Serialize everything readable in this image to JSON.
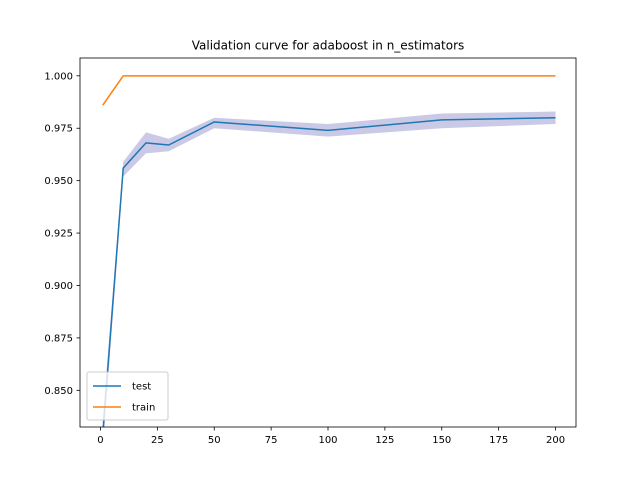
{
  "chart_data": {
    "type": "line",
    "title": "Validation curve for adaboost in n_estimators",
    "xlabel": "",
    "ylabel": "",
    "xlim": [
      -9,
      209
    ],
    "ylim": [
      0.8325,
      1.0085
    ],
    "xticks": [
      0,
      25,
      50,
      75,
      100,
      125,
      150,
      175,
      200
    ],
    "yticks": [
      0.85,
      0.875,
      0.9,
      0.925,
      0.95,
      0.975,
      1.0
    ],
    "ytick_labels": [
      "0.850",
      "0.875",
      "0.900",
      "0.925",
      "0.950",
      "0.975",
      "1.000"
    ],
    "grid": false,
    "legend": {
      "position": "lower-left"
    },
    "series": [
      {
        "name": "test",
        "color": "#1f77b4",
        "x": [
          1,
          10,
          20,
          30,
          50,
          100,
          150,
          200
        ],
        "y": [
          0.829,
          0.956,
          0.968,
          0.967,
          0.978,
          0.974,
          0.979,
          0.98
        ],
        "band_lower": [
          0.821,
          0.952,
          0.963,
          0.964,
          0.975,
          0.971,
          0.975,
          0.977
        ],
        "band_upper": [
          0.837,
          0.959,
          0.973,
          0.97,
          0.98,
          0.977,
          0.982,
          0.983
        ],
        "band_color": "#2c2ca0"
      },
      {
        "name": "train",
        "color": "#ff7f0e",
        "x": [
          1,
          10,
          20,
          30,
          50,
          100,
          150,
          200
        ],
        "y": [
          0.986,
          1.0,
          1.0,
          1.0,
          1.0,
          1.0,
          1.0,
          1.0
        ]
      }
    ]
  }
}
